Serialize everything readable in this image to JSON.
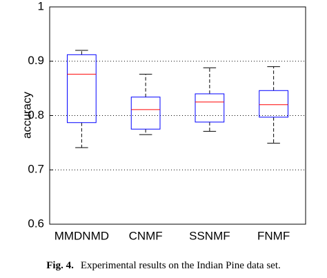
{
  "chart_data": {
    "type": "box",
    "ylabel": "accuracy",
    "categories": [
      "MMDNMD",
      "CNMF",
      "SSNMF",
      "FNMF"
    ],
    "min": [
      0.741,
      0.765,
      0.771,
      0.749
    ],
    "q1": [
      0.787,
      0.775,
      0.788,
      0.797
    ],
    "median": [
      0.876,
      0.811,
      0.825,
      0.82
    ],
    "q3": [
      0.912,
      0.834,
      0.84,
      0.846
    ],
    "max": [
      0.92,
      0.876,
      0.888,
      0.89
    ],
    "box_color": "#0000ff",
    "median_color": "#ff0000",
    "whisker_color": "#000000",
    "ylim": [
      0.6,
      1
    ],
    "yticks": [
      0.6,
      0.7,
      0.8,
      0.9,
      1
    ],
    "grid": true
  },
  "caption": {
    "label": "Fig. 4.",
    "text": "Experimental results on the Indian Pine data set."
  }
}
